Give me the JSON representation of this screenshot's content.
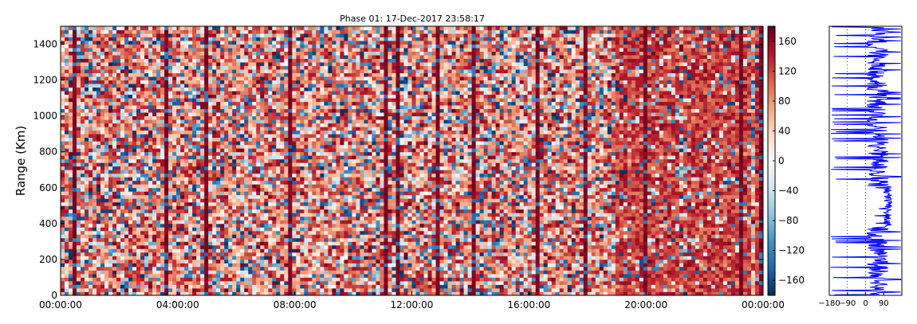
{
  "chart_data": [
    {
      "type": "heatmap",
      "title": "Phase 01: 17-Dec-2017 23:58:17",
      "xlabel": "",
      "ylabel": "Range (Km)",
      "x_tick_labels": [
        "00:00:00",
        "04:00:00",
        "08:00:00",
        "12:00:00",
        "16:00:00",
        "20:00:00",
        "00:00:00"
      ],
      "x_tick_hours": [
        0,
        4,
        8,
        12,
        16,
        20,
        24
      ],
      "xlim_hours": [
        0,
        24
      ],
      "y_ticks": [
        0,
        200,
        400,
        600,
        800,
        1000,
        1200,
        1400
      ],
      "ylim": [
        0,
        1500
      ],
      "colorbar": {
        "colormap": "RdBu_r",
        "range": [
          -180,
          180
        ],
        "ticks": [
          -160,
          -120,
          -80,
          -40,
          0,
          40,
          80,
          120,
          160
        ]
      },
      "grid": false
    },
    {
      "type": "line",
      "title": "",
      "xlabel": "",
      "ylabel": "",
      "x_ticks": [
        -180,
        -90,
        0,
        90
      ],
      "x_tick_labels": [
        "−180",
        "−90",
        "0",
        "90"
      ],
      "xlim": [
        -180,
        180
      ],
      "ylim": [
        0,
        1500
      ],
      "series_color": "#0000ff",
      "grid_vertical_dotted": [
        -90,
        0
      ]
    }
  ]
}
